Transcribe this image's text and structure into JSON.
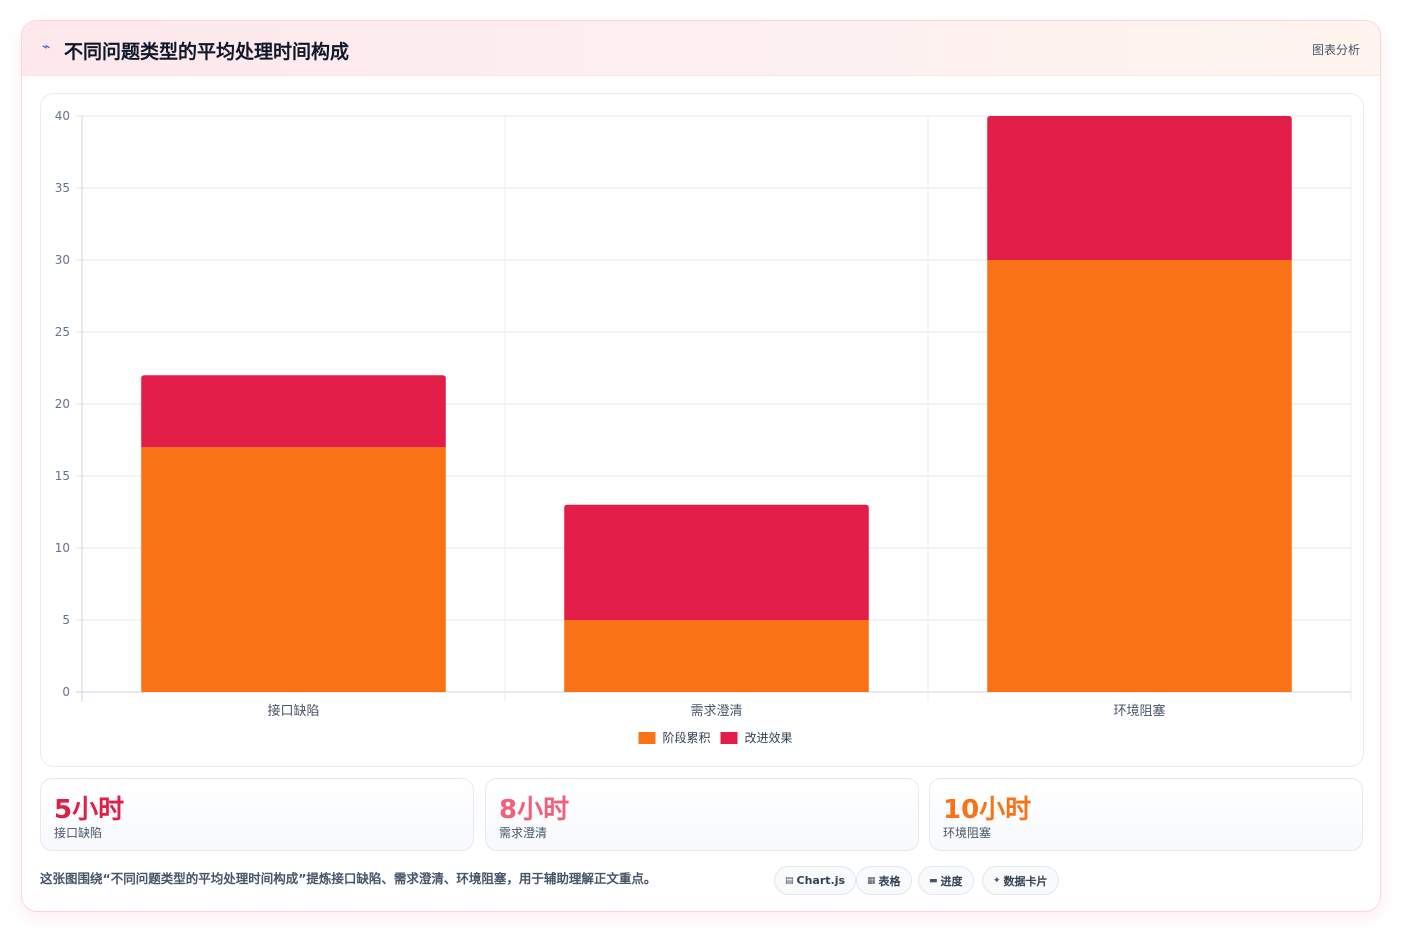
{
  "card": {
    "header_icon": "lightning-icon",
    "title": "不同问题类型的平均处理时间构成",
    "tag": "图表分析"
  },
  "chart_data": {
    "type": "bar",
    "stacked": true,
    "categories": [
      "接口缺陷",
      "需求澄清",
      "环境阻塞"
    ],
    "series": [
      {
        "name": "阶段累积",
        "color": "#f97316",
        "values": [
          17,
          5,
          30
        ]
      },
      {
        "name": "改进效果",
        "color": "#e11d48",
        "values": [
          5,
          8,
          10
        ]
      }
    ],
    "ylim": [
      0,
      40
    ],
    "yticks": [
      0,
      5,
      10,
      15,
      20,
      25,
      30,
      35,
      40
    ],
    "grid": true,
    "legend": "bottom"
  },
  "stats": [
    {
      "value": "5小时",
      "label": "接口缺陷",
      "color": "#e11d48"
    },
    {
      "value": "8小时",
      "label": "需求澄清",
      "color": "#f25f7a"
    },
    {
      "value": "10小时",
      "label": "环境阻塞",
      "color": "#f97316"
    }
  ],
  "summary": "这张图围绕“不同问题类型的平均处理时间构成”提炼接口缺陷、需求澄清、环境阻塞，用于辅助理解正文重点。",
  "chips": [
    {
      "icon": "chart-icon",
      "glyph": "▤",
      "label": "Chart.js"
    },
    {
      "icon": "table-icon",
      "glyph": "▦",
      "label": "表格"
    },
    {
      "icon": "progress-icon",
      "glyph": "▬",
      "label": "进度"
    },
    {
      "icon": "sparkle-icon",
      "glyph": "✦",
      "label": "数据卡片"
    }
  ]
}
